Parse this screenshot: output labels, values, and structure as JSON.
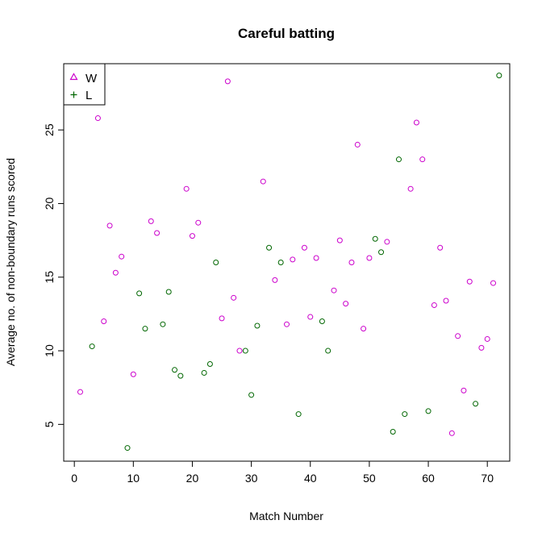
{
  "chart_data": {
    "type": "scatter",
    "title": "Careful batting",
    "xlabel": "Match Number",
    "ylabel": "Average no. of non-boundary runs scored",
    "xlim": [
      -1.8,
      73.8
    ],
    "ylim": [
      2.5,
      29.5
    ],
    "xticks": [
      0,
      10,
      20,
      30,
      40,
      50,
      60,
      70
    ],
    "yticks": [
      5,
      10,
      15,
      20,
      25
    ],
    "legend_position": "top-left",
    "series": [
      {
        "name": "W",
        "color": "#cc00cc",
        "x": [
          1,
          4,
          5,
          6,
          7,
          8,
          10,
          13,
          14,
          19,
          20,
          21,
          25,
          26,
          27,
          28,
          32,
          34,
          36,
          37,
          39,
          40,
          41,
          44,
          45,
          46,
          47,
          48,
          49,
          50,
          53,
          57,
          58,
          59,
          61,
          62,
          63,
          64,
          65,
          66,
          67,
          69,
          70,
          71
        ],
        "y": [
          7.2,
          25.8,
          12.0,
          18.5,
          15.3,
          16.4,
          8.4,
          18.8,
          18.0,
          21.0,
          17.8,
          18.7,
          12.2,
          28.3,
          13.6,
          10.0,
          21.5,
          14.8,
          11.8,
          16.2,
          17.0,
          12.3,
          16.3,
          14.1,
          17.5,
          13.2,
          16.0,
          24.0,
          11.5,
          16.3,
          17.4,
          21.0,
          25.5,
          23.0,
          13.1,
          17.0,
          13.4,
          4.4,
          11.0,
          7.3,
          14.7,
          10.2,
          10.8,
          14.6
        ]
      },
      {
        "name": "L",
        "color": "#006600",
        "x": [
          3,
          9,
          11,
          12,
          15,
          16,
          17,
          18,
          22,
          23,
          24,
          29,
          30,
          31,
          33,
          35,
          38,
          42,
          43,
          51,
          52,
          54,
          55,
          56,
          60,
          68,
          72
        ],
        "y": [
          10.3,
          3.4,
          13.9,
          11.5,
          11.8,
          14.0,
          8.7,
          8.3,
          8.5,
          9.1,
          16.0,
          10.0,
          7.0,
          11.7,
          17.0,
          16.0,
          5.7,
          12.0,
          10.0,
          17.6,
          16.7,
          4.5,
          23.0,
          5.7,
          5.9,
          6.4,
          28.7
        ]
      }
    ]
  }
}
